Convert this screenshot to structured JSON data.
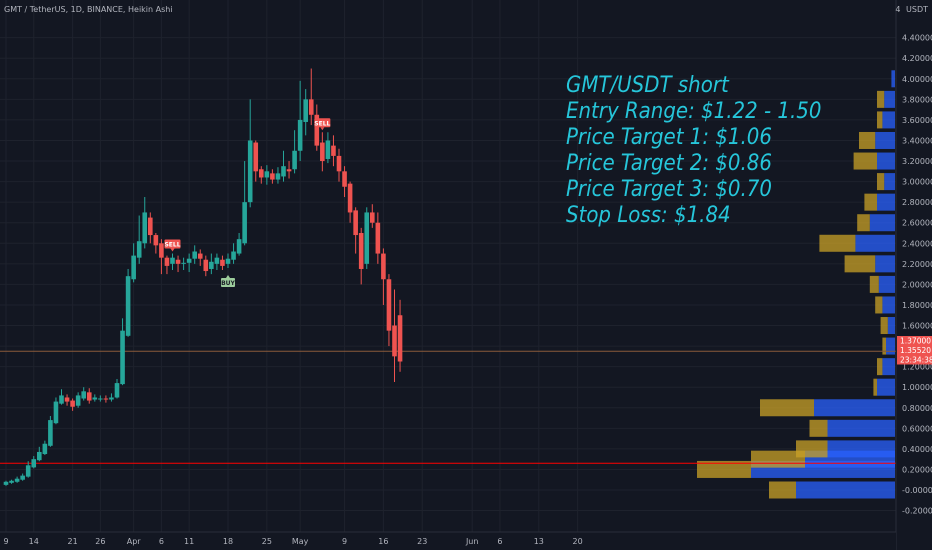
{
  "header": {
    "symbol_line": "GMT / TetherUS, 1D, BINANCE, Heikin Ashi",
    "currency": "USDT",
    "scale_number": "4"
  },
  "colors": {
    "background": "#131722",
    "up": "#26a69a",
    "down": "#ef5350",
    "annotation": "#26c6da",
    "vp_up": "#2962ff",
    "vp_down": "#c9a227",
    "horizontal_line": "#ff0000"
  },
  "annotation": [
    "GMT/USDT short",
    "Entry Range: $1.22 - 1.50",
    "Price Target 1: $1.06",
    "Price Target 2: $0.86",
    "Price Target 3: $0.70",
    "Stop Loss: $1.84"
  ],
  "price_badges": [
    {
      "label": "1.37000",
      "price": 1.37,
      "color": "#ef5350"
    },
    {
      "label": "1.35520",
      "price": 1.3552,
      "color": "#ef5350"
    },
    {
      "label": "23:34:38",
      "price": 1.3,
      "color": "#ef5350"
    }
  ],
  "chart_data": {
    "type": "candlestick",
    "style": "Heikin Ashi",
    "y_axis": {
      "min": -0.2,
      "max": 4.4,
      "ticks": [
        "-0.20000",
        "-0.00000",
        "0.20000",
        "0.40000",
        "0.60000",
        "0.80000",
        "1.00000",
        "1.20000",
        "1.40000",
        "1.60000",
        "1.80000",
        "2.00000",
        "2.20000",
        "2.40000",
        "2.60000",
        "2.80000",
        "3.00000",
        "3.20000",
        "3.40000",
        "3.60000",
        "3.80000",
        "4.00000",
        "4.20000",
        "4.40000"
      ]
    },
    "x_axis": {
      "start_date": "Mar 9",
      "labels": [
        {
          "text": "9",
          "day": 0
        },
        {
          "text": "14",
          "day": 5
        },
        {
          "text": "21",
          "day": 12
        },
        {
          "text": "26",
          "day": 17
        },
        {
          "text": "Apr",
          "day": 23
        },
        {
          "text": "6",
          "day": 28
        },
        {
          "text": "11",
          "day": 33
        },
        {
          "text": "18",
          "day": 40
        },
        {
          "text": "25",
          "day": 47
        },
        {
          "text": "May",
          "day": 53
        },
        {
          "text": "9",
          "day": 61
        },
        {
          "text": "16",
          "day": 68
        },
        {
          "text": "23",
          "day": 75
        },
        {
          "text": "Jun",
          "day": 84
        },
        {
          "text": "6",
          "day": 89
        },
        {
          "text": "13",
          "day": 96
        },
        {
          "text": "20",
          "day": 103
        }
      ]
    },
    "candles": [
      [
        0,
        0.05,
        0.08,
        0.09,
        0.04
      ],
      [
        1,
        0.07,
        0.09,
        0.1,
        0.06
      ],
      [
        2,
        0.08,
        0.11,
        0.13,
        0.07
      ],
      [
        3,
        0.1,
        0.14,
        0.16,
        0.09
      ],
      [
        4,
        0.13,
        0.24,
        0.28,
        0.12
      ],
      [
        5,
        0.22,
        0.3,
        0.33,
        0.21
      ],
      [
        6,
        0.29,
        0.37,
        0.42,
        0.28
      ],
      [
        7,
        0.35,
        0.45,
        0.48,
        0.34
      ],
      [
        8,
        0.43,
        0.68,
        0.72,
        0.42
      ],
      [
        9,
        0.65,
        0.86,
        0.9,
        0.64
      ],
      [
        10,
        0.84,
        0.92,
        0.98,
        0.83
      ],
      [
        11,
        0.9,
        0.86,
        0.93,
        0.82
      ],
      [
        12,
        0.87,
        0.81,
        0.89,
        0.77
      ],
      [
        13,
        0.82,
        0.92,
        0.95,
        0.8
      ],
      [
        14,
        0.89,
        0.96,
        1.0,
        0.87
      ],
      [
        15,
        0.95,
        0.87,
        0.99,
        0.84
      ],
      [
        16,
        0.88,
        0.9,
        0.93,
        0.86
      ],
      [
        17,
        0.89,
        0.89,
        0.92,
        0.86
      ],
      [
        18,
        0.89,
        0.88,
        0.92,
        0.85
      ],
      [
        19,
        0.88,
        0.9,
        0.94,
        0.86
      ],
      [
        20,
        0.9,
        1.04,
        1.08,
        0.89
      ],
      [
        21,
        1.03,
        1.55,
        1.67,
        1.02
      ],
      [
        22,
        1.5,
        2.08,
        2.15,
        1.49
      ],
      [
        23,
        2.05,
        2.28,
        2.4,
        2.02
      ],
      [
        24,
        2.26,
        2.42,
        2.67,
        2.2
      ],
      [
        25,
        2.4,
        2.7,
        2.85,
        2.35
      ],
      [
        26,
        2.65,
        2.48,
        2.7,
        2.4
      ],
      [
        27,
        2.48,
        2.38,
        2.5,
        2.3
      ],
      [
        28,
        2.4,
        2.26,
        2.44,
        2.1
      ],
      [
        29,
        2.26,
        2.18,
        2.28,
        2.1
      ],
      [
        30,
        2.2,
        2.26,
        2.3,
        2.14
      ],
      [
        31,
        2.24,
        2.2,
        2.28,
        2.12
      ],
      [
        32,
        2.2,
        2.21,
        2.26,
        2.14
      ],
      [
        33,
        2.21,
        2.25,
        2.3,
        2.12
      ],
      [
        34,
        2.25,
        2.32,
        2.38,
        2.2
      ],
      [
        35,
        2.3,
        2.25,
        2.34,
        2.18
      ],
      [
        36,
        2.24,
        2.13,
        2.28,
        2.08
      ],
      [
        37,
        2.15,
        2.22,
        2.3,
        2.1
      ],
      [
        38,
        2.2,
        2.26,
        2.3,
        2.14
      ],
      [
        39,
        2.24,
        2.18,
        2.28,
        2.14
      ],
      [
        40,
        2.2,
        2.25,
        2.3,
        2.16
      ],
      [
        41,
        2.24,
        2.32,
        2.4,
        2.2
      ],
      [
        42,
        2.3,
        2.44,
        2.5,
        2.28
      ],
      [
        43,
        2.4,
        2.8,
        3.2,
        2.38
      ],
      [
        44,
        2.8,
        3.4,
        3.8,
        2.75
      ],
      [
        45,
        3.38,
        3.1,
        3.4,
        3.0
      ],
      [
        46,
        3.12,
        3.04,
        3.15,
        2.98
      ],
      [
        47,
        3.04,
        3.1,
        3.16,
        2.97
      ],
      [
        48,
        3.08,
        3.02,
        3.12,
        2.98
      ],
      [
        49,
        3.02,
        3.08,
        3.14,
        2.98
      ],
      [
        50,
        3.05,
        3.15,
        3.3,
        3.0
      ],
      [
        51,
        3.12,
        3.1,
        3.2,
        3.03
      ],
      [
        52,
        3.12,
        3.3,
        3.5,
        3.08
      ],
      [
        53,
        3.3,
        3.6,
        3.98,
        3.2
      ],
      [
        54,
        3.58,
        3.8,
        3.9,
        3.45
      ],
      [
        55,
        3.8,
        3.65,
        4.1,
        3.55
      ],
      [
        56,
        3.65,
        3.35,
        3.75,
        3.3
      ],
      [
        57,
        3.38,
        3.2,
        3.48,
        3.1
      ],
      [
        58,
        3.22,
        3.4,
        3.48,
        3.18
      ],
      [
        59,
        3.35,
        3.25,
        3.45,
        3.15
      ],
      [
        60,
        3.25,
        3.1,
        3.32,
        3.0
      ],
      [
        61,
        3.1,
        2.95,
        3.15,
        2.85
      ],
      [
        62,
        2.98,
        2.7,
        3.0,
        2.6
      ],
      [
        63,
        2.72,
        2.48,
        2.75,
        2.3
      ],
      [
        64,
        2.5,
        2.15,
        2.55,
        2.0
      ],
      [
        65,
        2.2,
        2.7,
        2.75,
        2.15
      ],
      [
        66,
        2.7,
        2.6,
        2.78,
        2.55
      ],
      [
        67,
        2.6,
        2.3,
        2.7,
        2.2
      ],
      [
        68,
        2.3,
        2.05,
        2.35,
        1.8
      ],
      [
        69,
        2.05,
        1.55,
        2.1,
        1.4
      ],
      [
        70,
        1.6,
        1.3,
        1.95,
        1.05
      ],
      [
        71,
        1.7,
        1.25,
        1.85,
        1.15
      ]
    ],
    "signals": [
      {
        "label": "SELL",
        "type": "sell",
        "day": 30
      },
      {
        "label": "BUY",
        "type": "buy",
        "day": 40
      },
      {
        "label": "SELL",
        "type": "sell",
        "day": 57
      }
    ],
    "horizontal_lines": [
      {
        "price": 0.26,
        "color": "#ff0000"
      },
      {
        "price": 1.35,
        "color": "#8a5a3a"
      }
    ],
    "volume_profile": [
      {
        "price": 0.0,
        "up": 110,
        "down": 30
      },
      {
        "price": 0.2,
        "up": 160,
        "down": 60
      },
      {
        "price": 0.3,
        "up": 100,
        "down": 60
      },
      {
        "price": 0.4,
        "up": 75,
        "down": 35
      },
      {
        "price": 0.6,
        "up": 75,
        "down": 20
      },
      {
        "price": 0.8,
        "up": 90,
        "down": 60
      },
      {
        "price": 1.0,
        "up": 20,
        "down": 4
      },
      {
        "price": 1.2,
        "up": 14,
        "down": 6
      },
      {
        "price": 1.4,
        "up": 10,
        "down": 4
      },
      {
        "price": 1.6,
        "up": 8,
        "down": 8
      },
      {
        "price": 1.8,
        "up": 14,
        "down": 8
      },
      {
        "price": 2.0,
        "up": 18,
        "down": 10
      },
      {
        "price": 2.2,
        "up": 22,
        "down": 34
      },
      {
        "price": 2.4,
        "up": 44,
        "down": 40
      },
      {
        "price": 2.6,
        "up": 28,
        "down": 14
      },
      {
        "price": 2.8,
        "up": 20,
        "down": 14
      },
      {
        "price": 3.0,
        "up": 12,
        "down": 8
      },
      {
        "price": 3.2,
        "up": 20,
        "down": 26
      },
      {
        "price": 3.4,
        "up": 22,
        "down": 18
      },
      {
        "price": 3.6,
        "up": 14,
        "down": 6
      },
      {
        "price": 3.8,
        "up": 12,
        "down": 8
      },
      {
        "price": 4.0,
        "up": 4,
        "down": 0
      }
    ]
  }
}
